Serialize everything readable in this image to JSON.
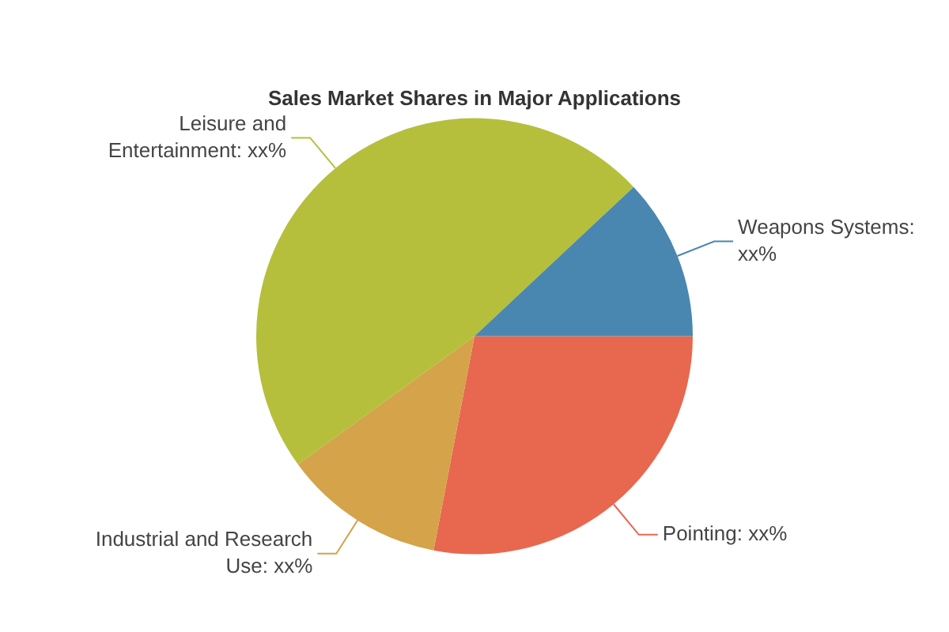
{
  "chart_data": {
    "type": "pie",
    "title": "Sales Market Shares in Major Applications",
    "categories": [
      "Pointing: xx%",
      "Industrial and Research Use: xx%",
      "Leisure and Entertainment: xx%",
      "Weapons Systems: xx%"
    ],
    "values": [
      28,
      12,
      48,
      12
    ],
    "colors": [
      "#e8674f",
      "#d4a34a",
      "#b5bf3b",
      "#4a87b0"
    ],
    "legend": false
  }
}
